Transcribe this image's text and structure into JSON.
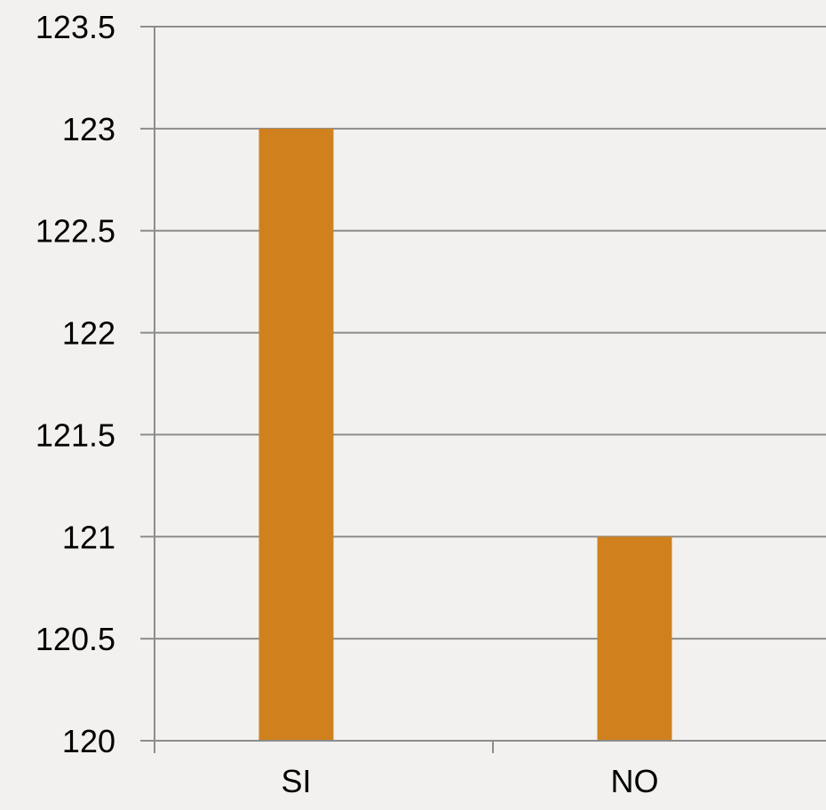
{
  "chart_data": {
    "type": "bar",
    "categories": [
      "SI",
      "NO"
    ],
    "values": [
      123,
      121
    ],
    "ylim": [
      120,
      123.5
    ],
    "yticks": [
      120,
      120.5,
      121,
      121.5,
      122,
      122.5,
      123,
      123.5
    ],
    "ytick_labels": [
      "120",
      "120.5",
      "121",
      "121.5",
      "122",
      "122.5",
      "123",
      "123.5"
    ],
    "grid": true,
    "legend": "none",
    "title": "",
    "xlabel": "",
    "ylabel": ""
  },
  "colors": {
    "bar": "#d0811e",
    "grid": "#8c8c8c",
    "background": "#f2f1ef",
    "text": "#000000"
  }
}
